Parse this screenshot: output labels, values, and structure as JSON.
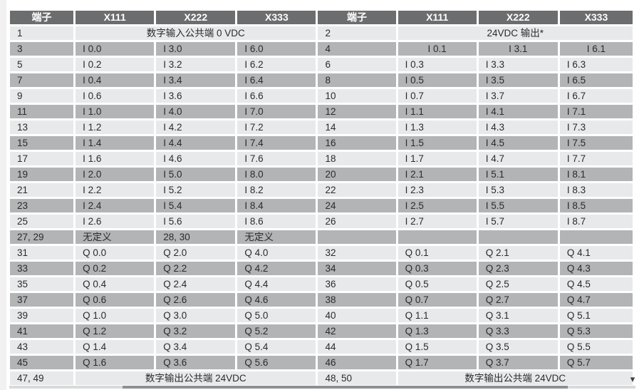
{
  "colors": {
    "header_bg": "#6c6d6f",
    "header_text": "#ffffff",
    "row_dark": "#b2b4b6",
    "row_light": "#e8e9ea",
    "text": "#2b2b2b",
    "scroll_track": "#d9dadb",
    "scroll_thumb": "#8f9092",
    "arrow": "#3f3f41",
    "margin_strip": "#f1f1f2"
  },
  "icons": {
    "scroll_arrow": "▾"
  },
  "table": {
    "header": [
      "端子",
      "X111",
      "X222",
      "X333",
      "端子",
      "X111",
      "X222",
      "X333"
    ],
    "rows": [
      {
        "cells": [
          {
            "t": "1",
            "term": true
          },
          {
            "t": "数字输入公共端 0 VDC",
            "span": 3,
            "align": "center"
          },
          {
            "t": "2",
            "term": true
          },
          {
            "t": "24VDC 输出*",
            "span": 3,
            "align": "center"
          }
        ]
      },
      {
        "cells": [
          {
            "t": "3",
            "term": true
          },
          {
            "t": "I 0.0"
          },
          {
            "t": "I 3.0"
          },
          {
            "t": "I 6.0"
          },
          {
            "t": "4",
            "term": true
          },
          {
            "t": "I 0.1",
            "align": "center"
          },
          {
            "t": "I 3.1",
            "align": "center"
          },
          {
            "t": "I 6.1",
            "align": "center"
          }
        ]
      },
      {
        "cells": [
          {
            "t": "5",
            "term": true
          },
          {
            "t": "I 0.2"
          },
          {
            "t": "I 3.2"
          },
          {
            "t": "I 6.2"
          },
          {
            "t": "6",
            "term": true
          },
          {
            "t": "I 0.3"
          },
          {
            "t": "I 3.3"
          },
          {
            "t": "I 6.3"
          }
        ]
      },
      {
        "cells": [
          {
            "t": "7",
            "term": true
          },
          {
            "t": "I 0.4"
          },
          {
            "t": "I 3.4"
          },
          {
            "t": "I 6.4"
          },
          {
            "t": "8",
            "term": true
          },
          {
            "t": "I 0.5"
          },
          {
            "t": "I 3.5"
          },
          {
            "t": "I 6.5"
          }
        ]
      },
      {
        "cells": [
          {
            "t": "9",
            "term": true
          },
          {
            "t": "I 0.6"
          },
          {
            "t": "I 3.6"
          },
          {
            "t": "I 6.6"
          },
          {
            "t": "10",
            "term": true
          },
          {
            "t": "I 0.7"
          },
          {
            "t": "I 3.7"
          },
          {
            "t": "I 6.7"
          }
        ]
      },
      {
        "cells": [
          {
            "t": "11",
            "term": true
          },
          {
            "t": "I 1.0"
          },
          {
            "t": "I 4.0"
          },
          {
            "t": "I 7.0"
          },
          {
            "t": "12",
            "term": true
          },
          {
            "t": "I 1.1"
          },
          {
            "t": "I 4.1"
          },
          {
            "t": "I 7.1"
          }
        ]
      },
      {
        "cells": [
          {
            "t": "13",
            "term": true
          },
          {
            "t": "I 1.2"
          },
          {
            "t": "I 4.2"
          },
          {
            "t": "I 7.2"
          },
          {
            "t": "14",
            "term": true
          },
          {
            "t": "I 1.3"
          },
          {
            "t": "I 4.3"
          },
          {
            "t": "I 7.3"
          }
        ]
      },
      {
        "cells": [
          {
            "t": "15",
            "term": true
          },
          {
            "t": "I 1.4"
          },
          {
            "t": "I 4.4"
          },
          {
            "t": "I 7.4"
          },
          {
            "t": "16",
            "term": true
          },
          {
            "t": "I 1.5"
          },
          {
            "t": "I 4.5"
          },
          {
            "t": "I 7.5"
          }
        ]
      },
      {
        "cells": [
          {
            "t": "17",
            "term": true
          },
          {
            "t": "I 1.6"
          },
          {
            "t": "I 4.6"
          },
          {
            "t": "I 7.6"
          },
          {
            "t": "18",
            "term": true
          },
          {
            "t": "I 1.7"
          },
          {
            "t": "I 4.7"
          },
          {
            "t": "I 7.7"
          }
        ]
      },
      {
        "cells": [
          {
            "t": "19",
            "term": true
          },
          {
            "t": "I 2.0"
          },
          {
            "t": "I 5.0"
          },
          {
            "t": "I 8.0"
          },
          {
            "t": "20",
            "term": true
          },
          {
            "t": "I 2.1"
          },
          {
            "t": "I 5.1"
          },
          {
            "t": "I 8.1"
          }
        ]
      },
      {
        "cells": [
          {
            "t": "21",
            "term": true
          },
          {
            "t": "I 2.2"
          },
          {
            "t": "I 5.2"
          },
          {
            "t": "I 8.2"
          },
          {
            "t": "22",
            "term": true
          },
          {
            "t": "I 2.3"
          },
          {
            "t": "I 5.3"
          },
          {
            "t": "I 8.3"
          }
        ]
      },
      {
        "cells": [
          {
            "t": "23",
            "term": true
          },
          {
            "t": "I 2.4"
          },
          {
            "t": "I 5.4"
          },
          {
            "t": "I 8.4"
          },
          {
            "t": "24",
            "term": true
          },
          {
            "t": "I 2.5"
          },
          {
            "t": "I 5.5"
          },
          {
            "t": "I 8.5"
          }
        ]
      },
      {
        "cells": [
          {
            "t": "25",
            "term": true
          },
          {
            "t": "I 2.6"
          },
          {
            "t": "I 5.6"
          },
          {
            "t": "I 8.6"
          },
          {
            "t": "26",
            "term": true
          },
          {
            "t": "I 2.7"
          },
          {
            "t": "I 5.7"
          },
          {
            "t": "I 8.7"
          }
        ]
      },
      {
        "cells": [
          {
            "t": "27, 29",
            "term": true
          },
          {
            "t": "无定义"
          },
          {
            "t": "28, 30",
            "term": true
          },
          {
            "t": "无定义"
          },
          {
            "t": ""
          },
          {
            "t": ""
          },
          {
            "t": ""
          },
          {
            "t": ""
          }
        ]
      },
      {
        "cells": [
          {
            "t": "31",
            "term": true
          },
          {
            "t": "Q 0.0"
          },
          {
            "t": "Q 2.0"
          },
          {
            "t": "Q 4.0"
          },
          {
            "t": "32",
            "term": true
          },
          {
            "t": "Q 0.1"
          },
          {
            "t": "Q 2.1"
          },
          {
            "t": "Q 4.1"
          }
        ]
      },
      {
        "cells": [
          {
            "t": "33",
            "term": true
          },
          {
            "t": "Q 0.2"
          },
          {
            "t": "Q 2.2"
          },
          {
            "t": "Q 4.2"
          },
          {
            "t": "34",
            "term": true
          },
          {
            "t": "Q 0.3"
          },
          {
            "t": "Q 2.3"
          },
          {
            "t": "Q 4.3"
          }
        ]
      },
      {
        "cells": [
          {
            "t": "35",
            "term": true
          },
          {
            "t": "Q 0.4"
          },
          {
            "t": "Q 2.4"
          },
          {
            "t": "Q 4.4"
          },
          {
            "t": "36",
            "term": true
          },
          {
            "t": "Q 0.5"
          },
          {
            "t": "Q 2.5"
          },
          {
            "t": "Q 4.5"
          }
        ]
      },
      {
        "cells": [
          {
            "t": "37",
            "term": true
          },
          {
            "t": "Q 0.6"
          },
          {
            "t": "Q 2.6"
          },
          {
            "t": "Q 4.6"
          },
          {
            "t": "38",
            "term": true
          },
          {
            "t": "Q 0.7"
          },
          {
            "t": "Q 2.7"
          },
          {
            "t": "Q 4.7"
          }
        ]
      },
      {
        "cells": [
          {
            "t": "39",
            "term": true
          },
          {
            "t": "Q 1.0"
          },
          {
            "t": "Q 3.0"
          },
          {
            "t": "Q 5.0"
          },
          {
            "t": "40",
            "term": true
          },
          {
            "t": "Q 1.1"
          },
          {
            "t": "Q 3.1"
          },
          {
            "t": "Q 5.1"
          }
        ]
      },
      {
        "cells": [
          {
            "t": "41",
            "term": true
          },
          {
            "t": "Q 1.2"
          },
          {
            "t": "Q 3.2"
          },
          {
            "t": "Q 5.2"
          },
          {
            "t": "42",
            "term": true
          },
          {
            "t": "Q 1.3"
          },
          {
            "t": "Q 3.3"
          },
          {
            "t": "Q 5.3"
          }
        ]
      },
      {
        "cells": [
          {
            "t": "43",
            "term": true
          },
          {
            "t": "Q 1.4"
          },
          {
            "t": "Q 3.4"
          },
          {
            "t": "Q 5.4"
          },
          {
            "t": "44",
            "term": true
          },
          {
            "t": "Q 1.5"
          },
          {
            "t": "Q 3.5"
          },
          {
            "t": "Q 5.5"
          }
        ]
      },
      {
        "cells": [
          {
            "t": "45",
            "term": true
          },
          {
            "t": "Q 1.6"
          },
          {
            "t": "Q 3.6"
          },
          {
            "t": "Q 5.6"
          },
          {
            "t": "46",
            "term": true
          },
          {
            "t": "Q 1.7"
          },
          {
            "t": "Q 3.7"
          },
          {
            "t": "Q 5.7"
          }
        ]
      },
      {
        "cells": [
          {
            "t": "47, 49",
            "term": true
          },
          {
            "t": "数字输出公共端 24VDC",
            "span": 3,
            "align": "center"
          },
          {
            "t": "48, 50",
            "term": true
          },
          {
            "t": "数字输出公共端 24VDC",
            "span": 3,
            "align": "center"
          }
        ]
      }
    ]
  }
}
